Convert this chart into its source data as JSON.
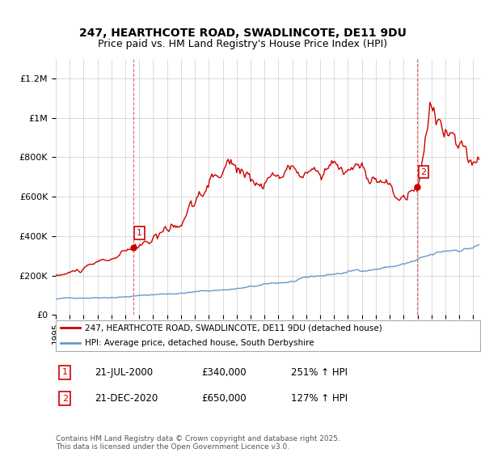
{
  "title_line1": "247, HEARTHCOTE ROAD, SWADLINCOTE, DE11 9DU",
  "title_line2": "Price paid vs. HM Land Registry's House Price Index (HPI)",
  "ylabel_ticks": [
    "£0",
    "£200K",
    "£400K",
    "£600K",
    "£800K",
    "£1M",
    "£1.2M"
  ],
  "ytick_values": [
    0,
    200000,
    400000,
    600000,
    800000,
    1000000,
    1200000
  ],
  "ylim": [
    0,
    1300000
  ],
  "xlim_start": 1995.0,
  "xlim_end": 2025.5,
  "red_color": "#cc0000",
  "blue_color": "#6699cc",
  "marker1_x": 2000.55,
  "marker1_y": 340000,
  "marker2_x": 2020.97,
  "marker2_y": 650000,
  "legend_line1": "247, HEARTHCOTE ROAD, SWADLINCOTE, DE11 9DU (detached house)",
  "legend_line2": "HPI: Average price, detached house, South Derbyshire",
  "annotation1_label": "1",
  "annotation1_date": "21-JUL-2000",
  "annotation1_price": "£340,000",
  "annotation1_hpi": "251% ↑ HPI",
  "annotation2_label": "2",
  "annotation2_date": "21-DEC-2020",
  "annotation2_price": "£650,000",
  "annotation2_hpi": "127% ↑ HPI",
  "footer": "Contains HM Land Registry data © Crown copyright and database right 2025.\nThis data is licensed under the Open Government Licence v3.0.",
  "background_color": "#ffffff",
  "grid_color": "#cccccc"
}
